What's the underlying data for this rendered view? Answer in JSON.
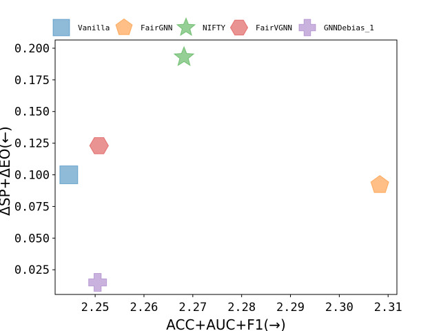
{
  "chart_data": {
    "type": "scatter",
    "xlabel": "ACC+AUC+F1(→)",
    "ylabel": "ΔSP+ΔEO(←)",
    "xlim": [
      2.2418,
      2.3118
    ],
    "ylim": [
      0.0055,
      0.2065
    ],
    "xticks": [
      2.25,
      2.26,
      2.27,
      2.28,
      2.29,
      2.3,
      2.31
    ],
    "xtick_labels": [
      "2.25",
      "2.26",
      "2.27",
      "2.28",
      "2.29",
      "2.30",
      "2.31"
    ],
    "yticks": [
      0.025,
      0.05,
      0.075,
      0.1,
      0.125,
      0.15,
      0.175,
      0.2
    ],
    "ytick_labels": [
      "0.025",
      "0.050",
      "0.075",
      "0.100",
      "0.125",
      "0.150",
      "0.175",
      "0.200"
    ],
    "grid": false,
    "legend_position": "top",
    "series": [
      {
        "name": "Vanilla",
        "marker": "square",
        "color": "#1f77b4",
        "x": 2.2446,
        "y": 0.1
      },
      {
        "name": "FairGNN",
        "marker": "pentagon",
        "color": "#ff7f0e",
        "x": 2.3083,
        "y": 0.092
      },
      {
        "name": "NIFTY",
        "marker": "star",
        "color": "#2ca02c",
        "x": 2.2682,
        "y": 0.193
      },
      {
        "name": "FairVGNN",
        "marker": "hexagon",
        "color": "#d62728",
        "x": 2.2508,
        "y": 0.123
      },
      {
        "name": "GNNDebias_1",
        "marker": "plus",
        "color": "#9467bd",
        "x": 2.2505,
        "y": 0.015
      }
    ]
  }
}
